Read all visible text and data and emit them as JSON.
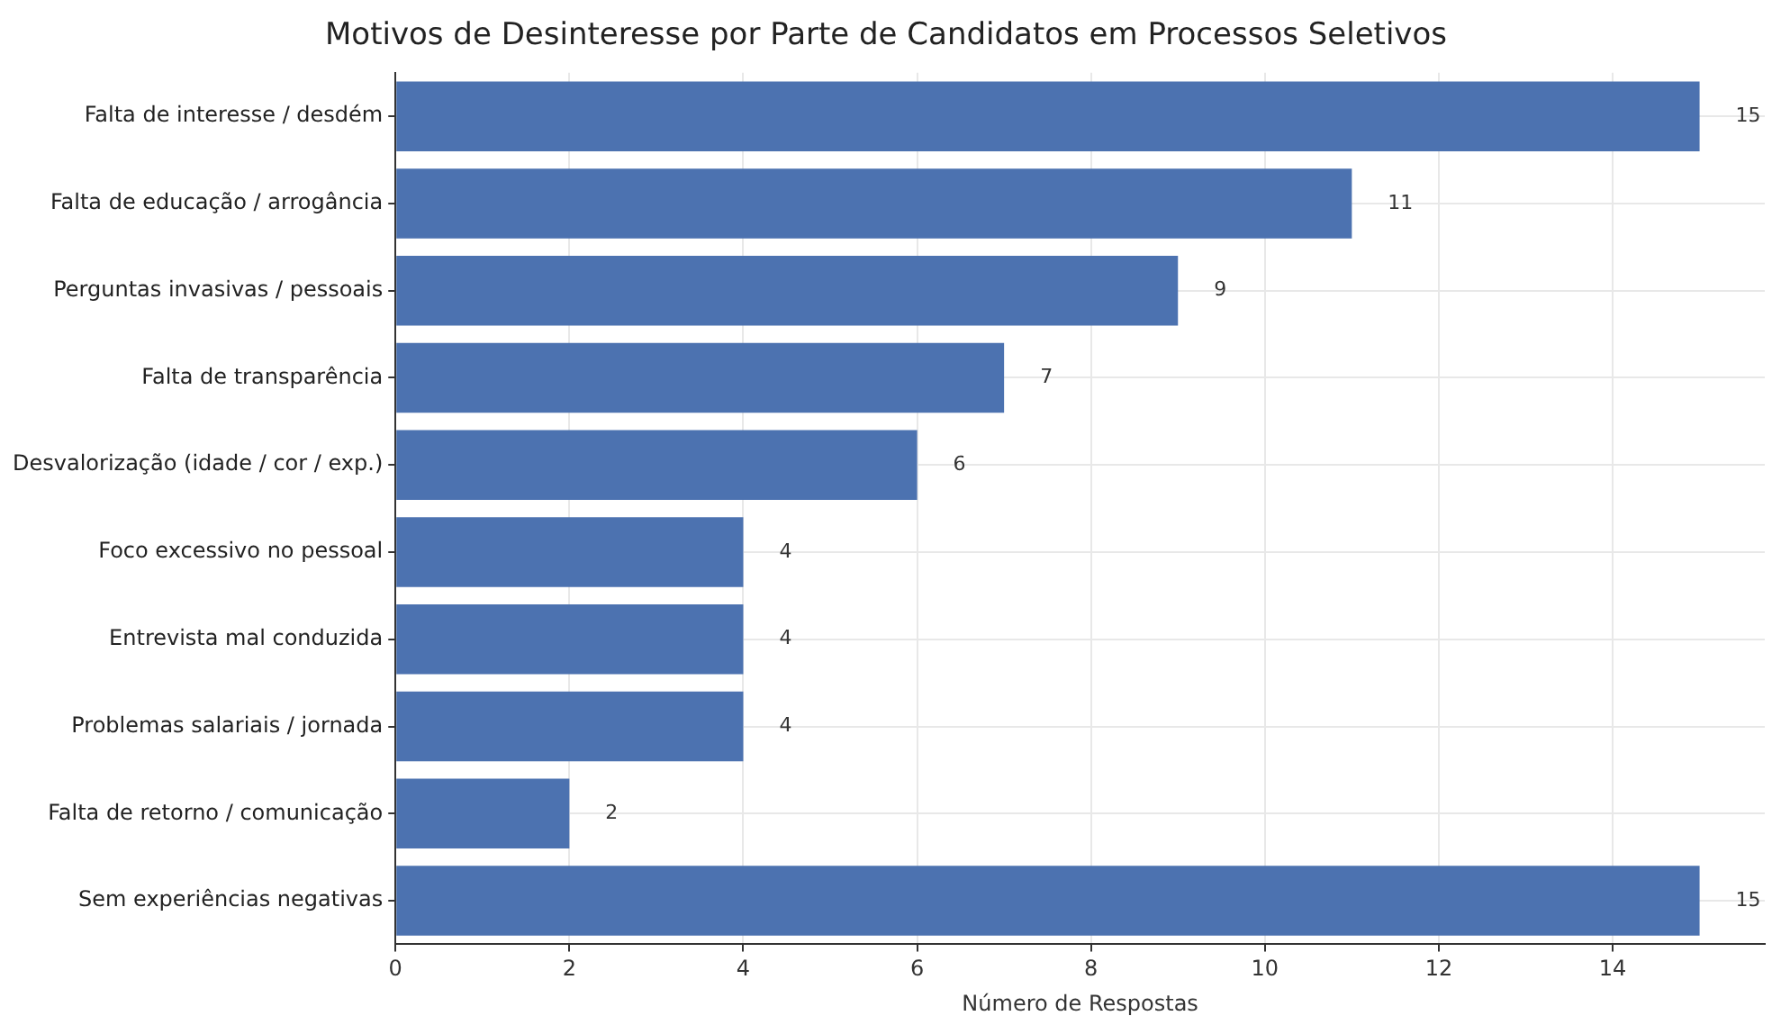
{
  "chart_data": {
    "type": "bar",
    "orientation": "horizontal",
    "title": "Motivos de Desinteresse por Parte de Candidatos em Processos Seletivos",
    "xlabel": "Número de Respostas",
    "categories": [
      "Falta de interesse / desdém",
      "Falta de educação / arrogância",
      "Perguntas invasivas / pessoais",
      "Falta de transparência",
      "Desvalorização (idade / cor / exp.)",
      "Foco excessivo no pessoal",
      "Entrevista mal conduzida",
      "Problemas salariais / jornada",
      "Falta de retorno / comunicação",
      "Sem experiências negativas"
    ],
    "values": [
      15,
      11,
      9,
      7,
      6,
      4,
      4,
      4,
      2,
      15
    ],
    "color": "#4c72b0",
    "xlim": [
      0,
      15.75
    ],
    "xticks": [
      0,
      2,
      4,
      6,
      8,
      10,
      12,
      14
    ],
    "grid": true,
    "data_labels": true
  }
}
